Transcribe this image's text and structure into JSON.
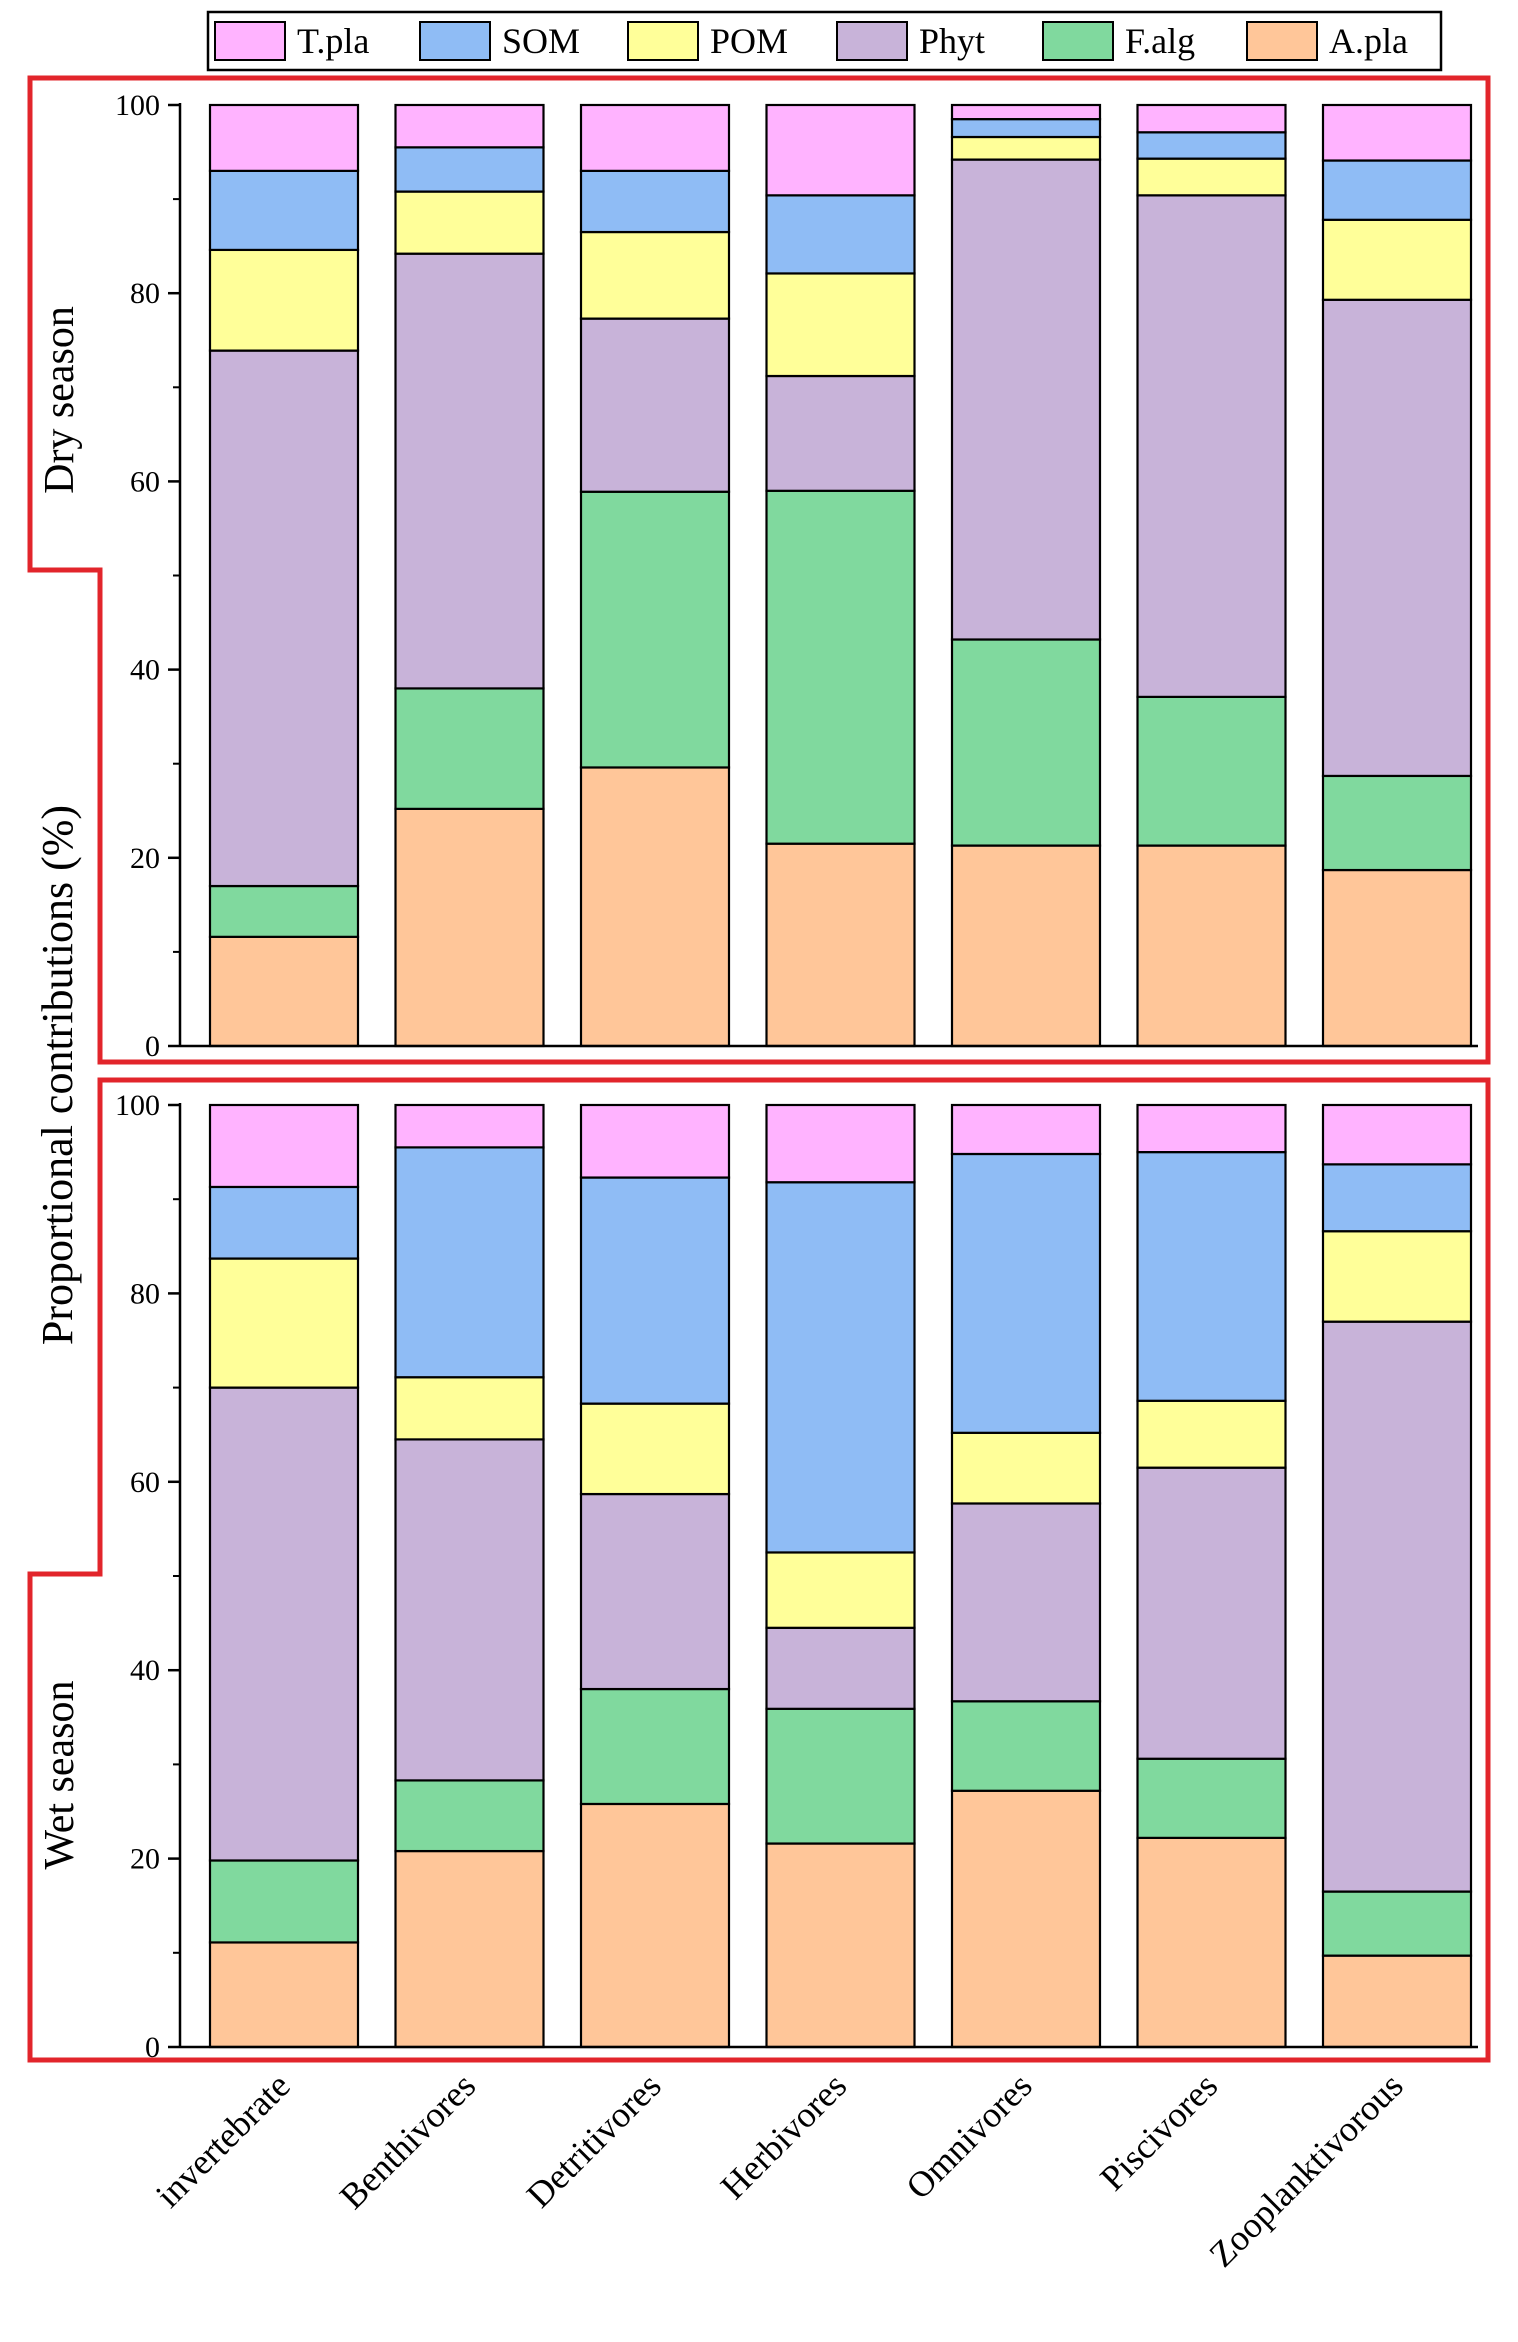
{
  "chart_data": {
    "type": "bar",
    "stacked": true,
    "ylabel": "Proportional contributions (%)",
    "ylim": [
      0,
      100
    ],
    "yticks": [
      0,
      20,
      40,
      60,
      80,
      100
    ],
    "ytick_labels": [
      "0",
      "20",
      "40",
      "60",
      "80",
      "100"
    ],
    "categories": [
      "invertebrate",
      "Benthivores",
      "Detritivores",
      "Herbivores",
      "Omnivores",
      "Piscivores",
      "Zooplanktivorous"
    ],
    "legend": {
      "placement": "top-center",
      "entries": [
        {
          "name": "T.pla",
          "color": "#ffb3ff"
        },
        {
          "name": "SOM",
          "color": "#8fbcf5"
        },
        {
          "name": "POM",
          "color": "#ffff99"
        },
        {
          "name": "Phyt",
          "color": "#c8b3d9"
        },
        {
          "name": "F.alg",
          "color": "#80d99e"
        },
        {
          "name": "A.pla",
          "color": "#ffc699"
        }
      ]
    },
    "panels": [
      {
        "label": "Dry season",
        "series": [
          {
            "name": "A.pla",
            "color": "#ffc699",
            "values": [
              11.6,
              25.2,
              29.6,
              21.5,
              21.3,
              21.3,
              18.7
            ]
          },
          {
            "name": "F.alg",
            "color": "#80d99e",
            "values": [
              5.4,
              12.8,
              29.3,
              37.5,
              21.9,
              15.8,
              10.0
            ]
          },
          {
            "name": "Phyt",
            "color": "#c8b3d9",
            "values": [
              56.9,
              46.2,
              18.4,
              12.2,
              51.0,
              53.3,
              50.6
            ]
          },
          {
            "name": "POM",
            "color": "#ffff99",
            "values": [
              10.7,
              6.6,
              9.2,
              10.9,
              2.4,
              3.9,
              8.5
            ]
          },
          {
            "name": "SOM",
            "color": "#8fbcf5",
            "values": [
              8.4,
              4.7,
              6.5,
              8.3,
              1.9,
              2.8,
              6.3
            ]
          },
          {
            "name": "T.pla",
            "color": "#ffb3ff",
            "values": [
              7.0,
              4.5,
              7.0,
              9.6,
              1.5,
              2.9,
              5.9
            ]
          }
        ]
      },
      {
        "label": "Wet season",
        "series": [
          {
            "name": "A.pla",
            "color": "#ffc699",
            "values": [
              11.1,
              20.8,
              25.8,
              21.6,
              27.2,
              22.2,
              9.7
            ]
          },
          {
            "name": "F.alg",
            "color": "#80d99e",
            "values": [
              8.7,
              7.5,
              12.2,
              14.3,
              9.5,
              8.4,
              6.8
            ]
          },
          {
            "name": "Phyt",
            "color": "#c8b3d9",
            "values": [
              50.2,
              36.2,
              20.7,
              8.6,
              21.0,
              30.9,
              60.5
            ]
          },
          {
            "name": "POM",
            "color": "#ffff99",
            "values": [
              13.7,
              6.6,
              9.6,
              8.0,
              7.5,
              7.1,
              9.6
            ]
          },
          {
            "name": "SOM",
            "color": "#8fbcf5",
            "values": [
              7.6,
              24.4,
              24.0,
              39.3,
              29.6,
              26.4,
              7.1
            ]
          },
          {
            "name": "T.pla",
            "color": "#ffb3ff",
            "values": [
              8.7,
              4.5,
              7.7,
              8.2,
              5.2,
              5.0,
              6.3
            ]
          }
        ]
      }
    ]
  }
}
